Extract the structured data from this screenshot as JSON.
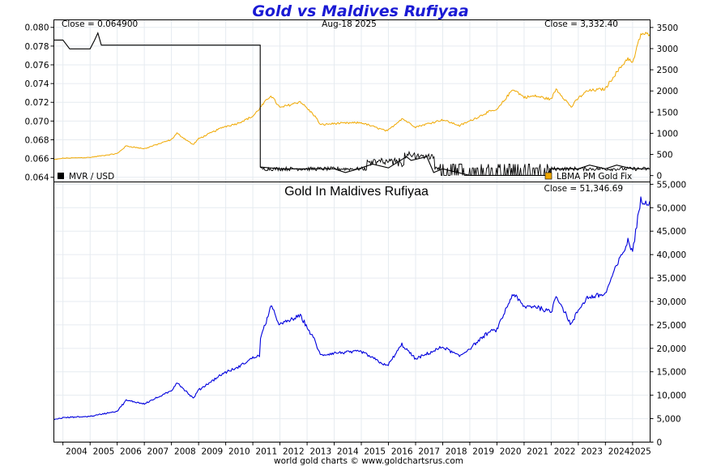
{
  "page": {
    "title": "Gold vs Maldives Rufiyaa",
    "footer": "world gold charts © www.goldchartsrus.com",
    "colors": {
      "title": "#1a1ad4",
      "gold": "#f0a800",
      "mvr": "#000000",
      "gold_mvr": "#0000dd",
      "grid": "#e6ebf0"
    }
  },
  "chart_data": [
    {
      "type": "line",
      "panel": "top",
      "date_label": "Aug-18  2025",
      "left_close": "Close = 0.064900",
      "right_close": "Close = 3,332.40",
      "left_axis": {
        "ylim": [
          0.0635,
          0.0808
        ],
        "ticks": [
          "0.080",
          "0.078",
          "0.076",
          "0.074",
          "0.072",
          "0.070",
          "0.068",
          "0.066",
          "0.064"
        ]
      },
      "right_axis": {
        "ylim": [
          -150,
          3680
        ],
        "ticks": [
          "3500",
          "3000",
          "2500",
          "2000",
          "1500",
          "1000",
          "500",
          "0"
        ]
      },
      "legend_placement": "bottom",
      "grid": true,
      "series": [
        {
          "name": "MVR / USD",
          "axis": "left",
          "color": "#000000",
          "x": [
            "2003-09-01",
            "2004-01-01",
            "2004-04-01",
            "2005-01-01",
            "2005-03-01",
            "2005-04-15",
            "2005-06-01",
            "2005-08-01",
            "2005-10-01",
            "2006-01-01",
            "2007-01-01",
            "2008-01-01",
            "2009-01-01",
            "2010-01-01",
            "2011-01-01",
            "2011-04-10",
            "2011-04-12",
            "2012-01-01",
            "2013-01-01",
            "2014-01-01",
            "2014-06-01",
            "2015-01-01",
            "2015-06-01",
            "2016-01-01",
            "2016-09-01",
            "2016-11-01",
            "2017-06-01",
            "2017-09-01",
            "2018-01-01",
            "2019-01-01",
            "2020-01-01",
            "2021-01-01",
            "2021-11-01",
            "2022-01-01",
            "2022-12-31",
            "2023-01-01",
            "2023-06-01",
            "2024-01-01",
            "2024-06-01",
            "2025-01-01",
            "2025-08-18"
          ],
          "values": [
            0.07865,
            0.07865,
            0.0777,
            0.0777,
            0.0786,
            0.0794,
            0.0781,
            0.0781,
            0.0781,
            0.0781,
            0.0781,
            0.0781,
            0.0781,
            0.0781,
            0.0781,
            0.0781,
            0.0651,
            0.0649,
            0.0649,
            0.0649,
            0.0645,
            0.065,
            0.0654,
            0.065,
            0.0662,
            0.0658,
            0.0662,
            0.0645,
            0.0649,
            0.0642,
            0.0642,
            0.0642,
            0.0642,
            0.0649,
            0.0649,
            0.0649,
            0.0653,
            0.0649,
            0.0653,
            0.0649,
            0.0649
          ]
        },
        {
          "name": "LBMA PM Gold Fix",
          "axis": "right",
          "color": "#f0a800",
          "x": [
            "2003-09-01",
            "2004-01-01",
            "2005-01-01",
            "2006-01-01",
            "2006-05-01",
            "2007-01-01",
            "2008-01-01",
            "2008-03-15",
            "2008-10-20",
            "2009-01-01",
            "2009-12-01",
            "2010-06-01",
            "2011-01-01",
            "2011-09-01",
            "2012-01-01",
            "2012-10-01",
            "2013-04-20",
            "2013-06-28",
            "2014-01-01",
            "2015-01-01",
            "2015-12-17",
            "2016-07-01",
            "2017-01-01",
            "2018-01-01",
            "2018-08-15",
            "2019-01-01",
            "2019-09-01",
            "2020-01-01",
            "2020-08-06",
            "2021-01-01",
            "2021-06-01",
            "2022-01-01",
            "2022-03-08",
            "2022-09-28",
            "2023-01-01",
            "2023-05-01",
            "2024-01-01",
            "2024-04-01",
            "2024-10-30",
            "2025-01-01",
            "2025-04-22",
            "2025-08-18"
          ],
          "values": [
            375,
            410,
            430,
            520,
            700,
            635,
            850,
            1000,
            730,
            870,
            1150,
            1230,
            1400,
            1900,
            1600,
            1750,
            1400,
            1200,
            1230,
            1250,
            1050,
            1350,
            1150,
            1320,
            1180,
            1290,
            1500,
            1550,
            2050,
            1850,
            1880,
            1800,
            2050,
            1620,
            1830,
            2000,
            2050,
            2300,
            2780,
            2650,
            3350,
            3332.4
          ]
        }
      ]
    },
    {
      "type": "line",
      "panel": "bottom",
      "title": "Gold In Maldives Rufiyaa",
      "close_label": "Close = 51,346.69",
      "ylim": [
        0,
        55500
      ],
      "yticks": [
        "55,000",
        "50,000",
        "45,000",
        "40,000",
        "35,000",
        "30,000",
        "25,000",
        "20,000",
        "15,000",
        "10,000",
        "5,000",
        "0"
      ],
      "xlabels": [
        "2004",
        "2005",
        "2006",
        "2007",
        "2008",
        "2009",
        "2010",
        "2011",
        "2012",
        "2013",
        "2014",
        "2015",
        "2016",
        "2017",
        "2018",
        "2019",
        "2020",
        "2021",
        "2022",
        "2023",
        "2024",
        "2025"
      ],
      "grid": true,
      "series": [
        {
          "name": "Gold In Maldives Rufiyaa",
          "color": "#0000dd",
          "x": [
            "2003-09-01",
            "2004-01-01",
            "2005-01-01",
            "2006-01-01",
            "2006-05-01",
            "2007-01-01",
            "2008-01-01",
            "2008-03-15",
            "2008-10-20",
            "2009-01-01",
            "2009-12-01",
            "2010-06-01",
            "2011-01-01",
            "2011-04-01",
            "2011-04-15",
            "2011-09-01",
            "2012-01-01",
            "2012-10-01",
            "2013-04-20",
            "2013-06-28",
            "2014-01-01",
            "2015-01-01",
            "2015-12-17",
            "2016-07-01",
            "2017-01-01",
            "2018-01-01",
            "2018-08-15",
            "2019-01-01",
            "2019-09-01",
            "2020-01-01",
            "2020-08-06",
            "2021-01-01",
            "2021-06-01",
            "2022-01-01",
            "2022-03-08",
            "2022-09-28",
            "2023-01-01",
            "2023-05-01",
            "2024-01-01",
            "2024-04-01",
            "2024-10-30",
            "2025-01-01",
            "2025-04-22",
            "2025-08-18"
          ],
          "values": [
            4800,
            5200,
            5500,
            6600,
            8900,
            8200,
            10900,
            12800,
            9300,
            11100,
            14700,
            15800,
            18000,
            18500,
            22000,
            29000,
            25000,
            27000,
            21500,
            18500,
            19000,
            19300,
            16200,
            20800,
            17700,
            20300,
            18300,
            20000,
            23300,
            24000,
            31700,
            28800,
            29000,
            27700,
            31400,
            25000,
            28200,
            30800,
            31600,
            35400,
            42800,
            40800,
            51600,
            51346.69
          ]
        }
      ]
    }
  ],
  "legend": {
    "left": "MVR / USD",
    "right": "LBMA PM Gold Fix"
  }
}
